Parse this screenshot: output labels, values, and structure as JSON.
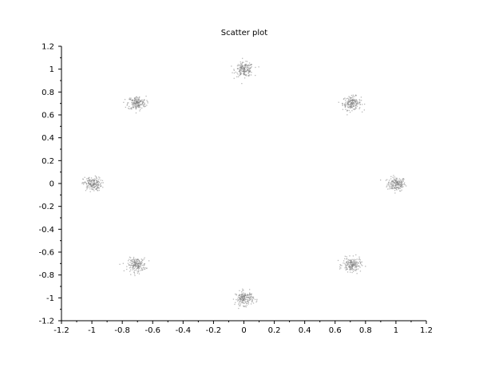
{
  "chart_data": {
    "type": "scatter",
    "title": "Scatter plot",
    "xlabel": "",
    "ylabel": "",
    "xlim": [
      -1.2,
      1.2
    ],
    "ylim": [
      -1.2,
      1.2
    ],
    "xticks": [
      "-1.2",
      "-1",
      "-0.8",
      "-0.6",
      "-0.4",
      "-0.2",
      "0",
      "0.2",
      "0.4",
      "0.6",
      "0.8",
      "1",
      "1.2"
    ],
    "yticks": [
      "-1.2",
      "-1",
      "-0.8",
      "-0.6",
      "-0.4",
      "-0.2",
      "0",
      "0.2",
      "0.4",
      "0.6",
      "0.8",
      "1",
      "1.2"
    ],
    "grid": false,
    "legend": "none",
    "marker_color": "#808080",
    "series": [
      {
        "clusters": [
          {
            "x": 1.0,
            "y": 0.0
          },
          {
            "x": 0.707,
            "y": 0.707
          },
          {
            "x": 0.0,
            "y": 1.0
          },
          {
            "x": -0.707,
            "y": 0.707
          },
          {
            "x": -1.0,
            "y": 0.0
          },
          {
            "x": -0.707,
            "y": -0.707
          },
          {
            "x": 0.0,
            "y": -1.0
          },
          {
            "x": 0.707,
            "y": -0.707
          }
        ],
        "spread_sd": 0.03
      }
    ]
  }
}
